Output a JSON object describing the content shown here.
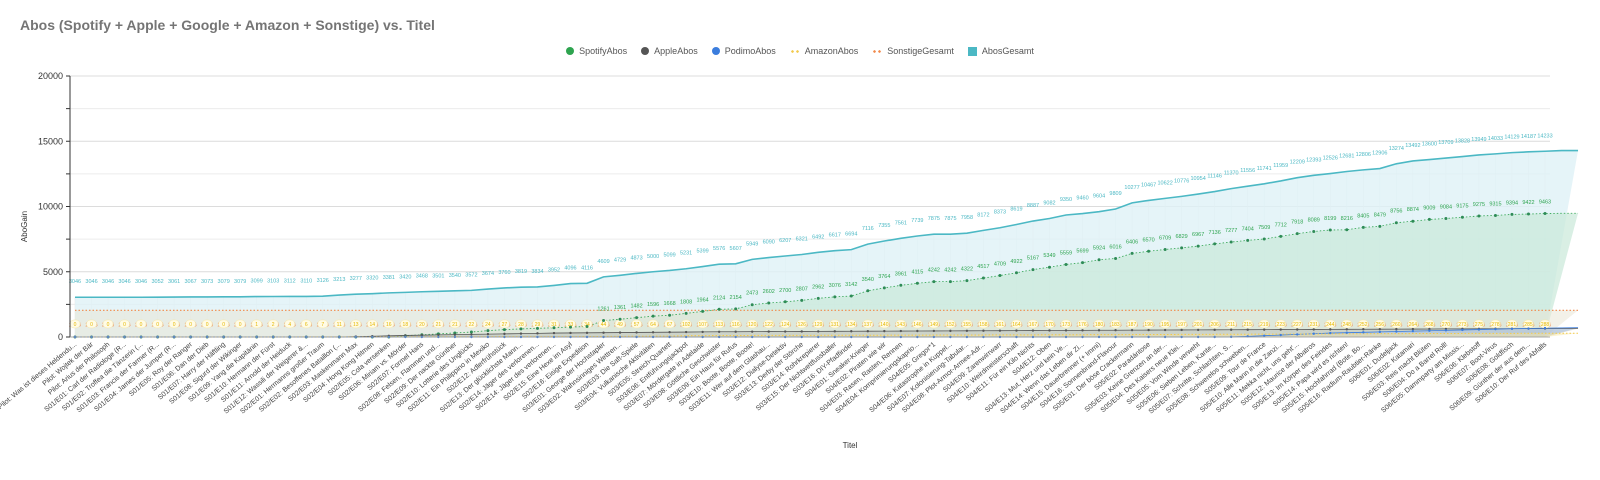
{
  "chart_data": {
    "type": "line",
    "title": "Abos (Spotify + Apple + Google + Amazon + Sonstige) vs. Titel",
    "xlabel": "Titel",
    "ylabel": "AboGain",
    "ylim": [
      0,
      20000
    ],
    "yticks": [
      0,
      5000,
      10000,
      15000,
      20000
    ],
    "grid": true,
    "legend_position": "top-center",
    "legend": [
      {
        "name": "SpotifyAbos",
        "color": "#2ea44f",
        "symbol": "circle"
      },
      {
        "name": "AppleAbos",
        "color": "#555555",
        "symbol": "circle"
      },
      {
        "name": "PodimoAbos",
        "color": "#3b7ddd",
        "symbol": "circle"
      },
      {
        "name": "AmazonAbos",
        "color": "#f2c94c",
        "symbol": "dots"
      },
      {
        "name": "SonstigeGesamt",
        "color": "#f2894a",
        "symbol": "dots"
      },
      {
        "name": "AbosGesamt",
        "color": "#4bb8c4",
        "symbol": "square"
      }
    ],
    "categories": [
      "Pilot: Was ist dieses Heldendu...",
      "Pilot: Wojtek der Bär",
      "Pilot: Arius der Philosoph",
      "S01/E01: Carl der Radiologe (R...",
      "S01/E02: Troffea die Tänzerin (...",
      "S01/E03: Francis der Farmer (R...",
      "S01/E04: James der Jumper (R...",
      "S01/E05: Roy der Ranger",
      "S01/E06: Dan der Dieb",
      "S01/E07: Harry der Häftling",
      "S01/E08: Sigurd der Wikinger",
      "S01/E09: Yang die Kapitänin",
      "S01/E10: Hermann der Fürst",
      "S01/E11: Arnold der Heiduck",
      "S01/E12: Wassili der Weigerer &...",
      "S02/E01: Hermanns großer Traum",
      "S02/E02: Besoffenes Bataillon (...",
      "S02/E03: Maskenmann Max",
      "S02/E04: Hong Kong Hitmen",
      "S02/E05: Cola versenken",
      "S02/E06: Miriam vs. Mörder",
      "S02/E07: Formel Hans",
      "S02/E08: Felsen, Flammen und...",
      "S02/E09: Der nackte Günther",
      "S02/E10: Lotterie des Unglücks",
      "S02/E11: Ein Philippino in Mexiko",
      "S02/E12: Adlerfrühstück",
      "S02/E13: Der glücklichste Mann...",
      "S02/E14: Jäger des verlorenen...",
      "S02/E14: Jäger des verlorenen...",
      "S02/E15: Eine Hexe im Asyl",
      "S02/E16: Eisige Expedition",
      "S03/E01: George der Hochstapler",
      "S03/E02: Wahnsinniges Wettren...",
      "S03/E03: Die Saft-Spiele",
      "S03/E04: Vulkanische Aktivitäten",
      "S03/E05: Streich-Quartett",
      "S03/E06: Entführungsjackpot",
      "S03/E07: Mördergate in Adelaide",
      "S03/E08: Göttliche Geschwister",
      "S03/E09: Ein Haus für Rufus",
      "S03/E10: Boote, Boote, Boote!",
      "S03/E11: Wer auf dem Glashau...",
      "S03/E12: Dialyse-Detektiv",
      "S03/E13: Derby der Störche",
      "S03/E14: Rohrkrepierer",
      "S03/E15: Der Nichtwettfussballer",
      "S03/E16: DIY-Pfadfinder",
      "S04/E01: Sneaker-Krieger",
      "S04/E02: Piraten wie wir",
      "S04/E03: Rasen, Rasten, Rennen",
      "S04/E04: Komprimierungskaprio...",
      "S04/E05: Gregor*1",
      "S04/E06: Katastrophe in Kuppel...",
      "S04/E07: Kolonisierung-Tabular...",
      "S04/E08: Plot-Armor-Armee-Adr...",
      "S04/E09: Zarenwirrwarr",
      "S04/E10: Weirdmeisterschaft",
      "S04/E11: Für ein Kilo Nichts",
      "S04/E12: Oben",
      "S04/E13: Mut, Herz und kein Ve...",
      "S04/E14: Wenn das Leben dir Zi...",
      "S04/E15: Dauerbrenner (+ Immi)",
      "S04/E16: Sonnenbrand-Flavour",
      "S05/E01: Der böse Crackermann",
      "S05/E02: Paradántose",
      "S05/E03: Keine Grenzen an der...",
      "S05/E04: Des Kaisers neue Klei...",
      "S05/E05: Vom Winde verweht",
      "S05/E06: Sieben Leben, Kante...",
      "S05/E07: Schritte, Schlachten, S...",
      "S05/E08: Schwerelos schweben...",
      "S05/E09: Tour de France",
      "S05/E10: Alle Mann in die Zanzi...",
      "S05/E11: Mekka nicht, uns geht'...",
      "S05/E12: Maurice der Albatros",
      "S05/E13: Im Körper des Feindes",
      "S05/E14: Papa wird es richten!",
      "S05/E15: Hochfahrrad (Bote, Bo...",
      "S05/E16: Radium-Raubtier-Ränke",
      "S06/E01: Dudeljack",
      "S06/E02: Katamari",
      "S06/E03: Reis macht Blüten",
      "S06/E04: Do a Barrel Roll!",
      "S06/E05: Dammparty am Missis...",
      "S06/E06: Klebstoff",
      "S06/E07: Boot-Virus",
      "S06/E08: Goldfisch",
      "S06/E09: Günther der aus dem...",
      "S06/E10: Der Ruf des Abfalls"
    ],
    "series": [
      {
        "name": "AbosGesamt",
        "values": [
          3046,
          3046,
          3046,
          3046,
          3046,
          3052,
          3061,
          3067,
          3073,
          3079,
          3079,
          3099,
          3103,
          3112,
          3110,
          3126,
          3213,
          3277,
          3320,
          3381,
          3420,
          3468,
          3501,
          3540,
          3572,
          3674,
          3760,
          3819,
          3834,
          3952,
          4096,
          4116,
          4609,
          4729,
          4873,
          5000,
          5099,
          5231,
          5399,
          5576,
          5607,
          5949,
          6090,
          6207,
          6321,
          6492,
          6617,
          6694,
          7116,
          7355,
          7561,
          7739,
          7875,
          7875,
          7958,
          8172,
          8373,
          8619,
          8887,
          9082,
          9350,
          9460,
          9604,
          9809,
          10277,
          10467,
          10622,
          10776,
          10954,
          11146,
          11370,
          11556,
          11741,
          11959,
          12209,
          12393,
          12526,
          12681,
          12806,
          12906,
          13274,
          13492,
          13600,
          13709,
          13828,
          13949,
          14033,
          14129,
          14187,
          14233,
          14287,
          14287
        ]
      },
      {
        "name": "SpotifyAbos",
        "values": [
          0,
          0,
          0,
          0,
          0,
          0,
          0,
          0,
          0,
          0,
          0,
          0,
          0,
          0,
          0,
          0,
          0,
          0,
          0,
          0,
          100,
          170,
          240,
          310,
          380,
          488,
          567,
          620,
          661,
          711,
          760,
          800,
          1261,
          1361,
          1482,
          1596,
          1668,
          1808,
          1964,
          2124,
          2154,
          2473,
          2602,
          2700,
          2807,
          2962,
          3076,
          3142,
          3540,
          3764,
          3961,
          4115,
          4242,
          4242,
          4322,
          4517,
          4709,
          4922,
          5167,
          5349,
          5559,
          5699,
          5924,
          6016,
          6406,
          6570,
          6709,
          6829,
          6967,
          7136,
          7277,
          7404,
          7509,
          7712,
          7918,
          8089,
          8199,
          8216,
          8405,
          8479,
          8756,
          8874,
          9009,
          9084,
          9175,
          9275,
          9315,
          9394,
          9422,
          9463,
          9481,
          9481
        ]
      },
      {
        "name": "AppleAbos",
        "values": [
          0,
          0,
          0,
          0,
          0,
          0,
          0,
          0,
          0,
          0,
          0,
          0,
          0,
          0,
          0,
          0,
          0,
          30,
          60,
          90,
          120,
          140,
          160,
          180,
          200,
          220,
          240,
          260,
          280,
          300,
          310,
          320,
          330,
          340,
          350,
          360,
          370,
          380,
          390,
          400,
          405,
          410,
          415,
          420,
          425,
          430,
          435,
          440,
          445,
          450,
          455,
          460,
          465,
          470,
          475,
          480,
          485,
          490,
          495,
          500,
          505,
          510,
          515,
          520,
          525,
          530,
          535,
          540,
          545,
          550,
          555,
          560,
          565,
          570,
          575,
          580,
          585,
          590,
          595,
          600,
          605,
          610,
          615,
          620,
          625,
          630,
          635,
          640,
          645,
          650,
          650,
          650
        ]
      },
      {
        "name": "PodimoAbos",
        "values": [
          0,
          0,
          0,
          0,
          0,
          0,
          0,
          0,
          0,
          0,
          0,
          0,
          0,
          0,
          0,
          0,
          0,
          0,
          0,
          0,
          0,
          0,
          0,
          0,
          0,
          0,
          0,
          0,
          0,
          0,
          0,
          0,
          0,
          0,
          0,
          0,
          0,
          0,
          0,
          0,
          0,
          0,
          0,
          0,
          0,
          0,
          0,
          0,
          0,
          0,
          0,
          0,
          0,
          0,
          0,
          0,
          0,
          0,
          0,
          0,
          0,
          0,
          0,
          0,
          0,
          0,
          0,
          0,
          0,
          0,
          10,
          50,
          100,
          150,
          200,
          250,
          300,
          330,
          360,
          390,
          420,
          450,
          480,
          510,
          540,
          570,
          600,
          630,
          650,
          680,
          700,
          720
        ]
      },
      {
        "name": "AmazonAbos",
        "values": [
          0,
          0,
          0,
          0,
          0,
          0,
          0,
          0,
          0,
          0,
          0,
          1,
          2,
          4,
          6,
          7,
          11,
          13,
          14,
          16,
          18,
          20,
          21,
          21,
          22,
          24,
          27,
          28,
          29,
          31,
          33,
          34,
          44,
          49,
          57,
          64,
          67,
          102,
          107,
          113,
          116,
          120,
          122,
          124,
          126,
          129,
          131,
          134,
          137,
          140,
          143,
          146,
          149,
          152,
          155,
          158,
          161,
          164,
          167,
          170,
          173,
          176,
          180,
          183,
          187,
          190,
          195,
          197,
          201,
          206,
          211,
          215,
          219,
          223,
          227,
          231,
          244,
          248,
          252,
          256,
          260,
          264,
          268,
          270,
          273,
          275,
          278,
          281,
          285,
          288,
          292,
          292
        ]
      },
      {
        "name": "SonstigeGesamt",
        "values": [
          2046,
          2046,
          2046,
          2046,
          2046,
          2046,
          2046,
          2046,
          2046,
          2046,
          2046,
          2046,
          2046,
          2046,
          2046,
          2046,
          2046,
          2046,
          2046,
          2046,
          2046,
          2046,
          2046,
          2046,
          2046,
          2046,
          2046,
          2046,
          2046,
          2046,
          2046,
          2046,
          2046,
          2046,
          2046,
          2046,
          2046,
          2046,
          2046,
          2046,
          2046,
          2046,
          2046,
          2046,
          2046,
          2046,
          2046,
          2046,
          2046,
          2046,
          2046,
          2046,
          2046,
          2046,
          2046,
          2046,
          2046,
          2046,
          2046,
          2046,
          2046,
          2046,
          2046,
          2046,
          2046,
          2046,
          2046,
          2046,
          2046,
          2046,
          2046,
          2046,
          2046,
          2046,
          2046,
          2046,
          2046,
          2046,
          2046,
          2046,
          2046,
          2046,
          2046,
          2046,
          2046,
          2046,
          2046,
          2046,
          2046,
          2046,
          2046,
          2046
        ]
      }
    ]
  }
}
